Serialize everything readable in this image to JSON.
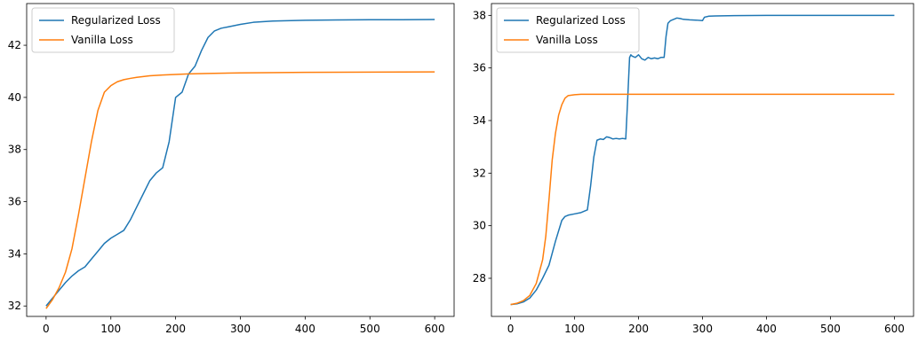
{
  "chart_data": [
    {
      "type": "line",
      "title": "",
      "xlabel": "",
      "ylabel": "",
      "xlim": [
        -30,
        630
      ],
      "ylim": [
        31.6,
        43.6
      ],
      "xticks": [
        0,
        100,
        200,
        300,
        400,
        500,
        600
      ],
      "yticks": [
        32,
        34,
        36,
        38,
        40,
        42
      ],
      "grid": false,
      "legend_position": "top-left",
      "series": [
        {
          "name": "Regularized Loss",
          "color": "#1f77b4",
          "x": [
            0,
            10,
            20,
            30,
            40,
            50,
            60,
            70,
            80,
            90,
            100,
            110,
            120,
            130,
            140,
            150,
            160,
            170,
            180,
            190,
            200,
            210,
            220,
            230,
            240,
            250,
            260,
            270,
            280,
            300,
            320,
            350,
            400,
            450,
            500,
            550,
            600
          ],
          "y": [
            32.0,
            32.3,
            32.6,
            32.9,
            33.15,
            33.35,
            33.5,
            33.8,
            34.1,
            34.4,
            34.6,
            34.75,
            34.9,
            35.3,
            35.8,
            36.3,
            36.8,
            37.1,
            37.3,
            38.3,
            40.0,
            40.2,
            40.9,
            41.2,
            41.8,
            42.3,
            42.55,
            42.65,
            42.7,
            42.8,
            42.88,
            42.93,
            42.96,
            42.97,
            42.98,
            42.98,
            42.99
          ]
        },
        {
          "name": "Vanilla Loss",
          "color": "#ff7f0e",
          "x": [
            0,
            10,
            20,
            30,
            40,
            50,
            60,
            70,
            80,
            90,
            100,
            110,
            120,
            130,
            140,
            150,
            160,
            180,
            200,
            220,
            250,
            300,
            400,
            500,
            600
          ],
          "y": [
            31.9,
            32.25,
            32.7,
            33.3,
            34.2,
            35.5,
            36.9,
            38.3,
            39.5,
            40.2,
            40.45,
            40.6,
            40.68,
            40.73,
            40.77,
            40.8,
            40.83,
            40.86,
            40.88,
            40.9,
            40.92,
            40.94,
            40.96,
            40.97,
            40.98
          ]
        }
      ]
    },
    {
      "type": "line",
      "title": "",
      "xlabel": "",
      "ylabel": "",
      "xlim": [
        -30,
        630
      ],
      "ylim": [
        26.55,
        38.45
      ],
      "xticks": [
        0,
        100,
        200,
        300,
        400,
        500,
        600
      ],
      "yticks": [
        28,
        30,
        32,
        34,
        36,
        38
      ],
      "grid": false,
      "legend_position": "top-left",
      "series": [
        {
          "name": "Regularized Loss",
          "color": "#1f77b4",
          "x": [
            0,
            10,
            20,
            30,
            40,
            50,
            60,
            70,
            80,
            85,
            90,
            100,
            110,
            115,
            120,
            125,
            130,
            135,
            140,
            145,
            150,
            155,
            160,
            165,
            170,
            175,
            180,
            183,
            186,
            188,
            190,
            195,
            200,
            205,
            210,
            215,
            220,
            225,
            230,
            235,
            240,
            243,
            246,
            250,
            255,
            260,
            265,
            270,
            280,
            290,
            300,
            303,
            310,
            320,
            350,
            400,
            500,
            600
          ],
          "y": [
            27.0,
            27.03,
            27.1,
            27.25,
            27.55,
            28.0,
            28.5,
            29.4,
            30.2,
            30.35,
            30.4,
            30.45,
            30.5,
            30.55,
            30.6,
            31.5,
            32.6,
            33.25,
            33.3,
            33.28,
            33.38,
            33.35,
            33.3,
            33.32,
            33.3,
            33.32,
            33.3,
            34.8,
            36.4,
            36.5,
            36.45,
            36.4,
            36.5,
            36.35,
            36.3,
            36.4,
            36.35,
            36.38,
            36.35,
            36.4,
            36.4,
            37.2,
            37.7,
            37.8,
            37.85,
            37.9,
            37.88,
            37.85,
            37.83,
            37.82,
            37.8,
            37.93,
            37.97,
            37.98,
            37.99,
            38.0,
            38.0,
            38.0
          ]
        },
        {
          "name": "Vanilla Loss",
          "color": "#ff7f0e",
          "x": [
            0,
            10,
            20,
            30,
            40,
            50,
            55,
            60,
            65,
            70,
            75,
            80,
            85,
            90,
            100,
            110,
            120,
            150,
            200,
            300,
            400,
            500,
            600
          ],
          "y": [
            27.0,
            27.05,
            27.15,
            27.35,
            27.8,
            28.7,
            29.6,
            31.0,
            32.5,
            33.5,
            34.2,
            34.6,
            34.85,
            34.95,
            34.98,
            35.0,
            35.0,
            35.0,
            35.0,
            35.0,
            35.0,
            35.0,
            35.0
          ]
        }
      ]
    }
  ]
}
